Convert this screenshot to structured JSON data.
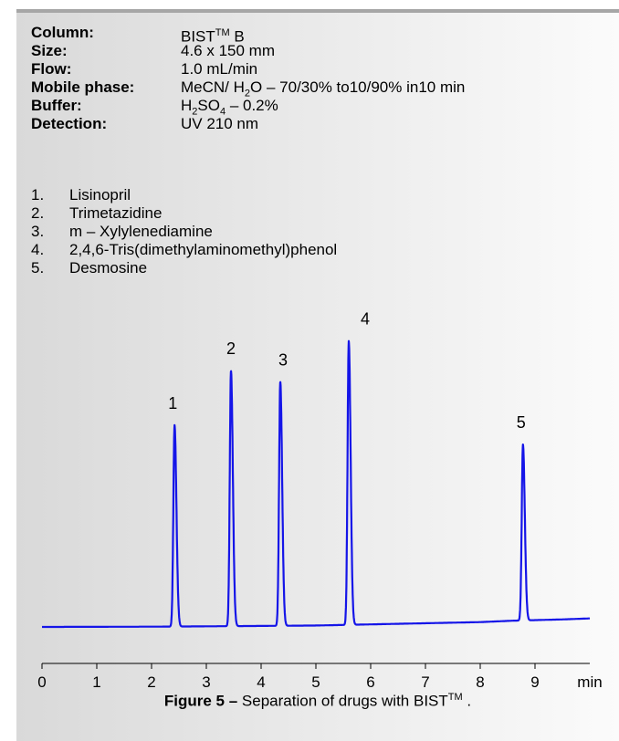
{
  "conditions": {
    "column": {
      "label": "Column:",
      "value": "BIST",
      "sup": "TM",
      "suffix": " B"
    },
    "size": {
      "label": "Size:",
      "value": "4.6 x 150 mm"
    },
    "flow": {
      "label": "Flow:",
      "value": "1.0 mL/min"
    },
    "mobile_phase": {
      "label": "Mobile phase:",
      "value_pre": "MeCN/ H",
      "sub": "2",
      "value_post": "O – 70/30% to10/90% in10 min"
    },
    "buffer": {
      "label": "Buffer:",
      "value_pre": "H",
      "sub1": "2",
      "mid": "SO",
      "sub2": "4",
      "value_post": " – 0.2%"
    },
    "detection": {
      "label": "Detection:",
      "value": "UV 210 nm"
    }
  },
  "compounds": [
    {
      "num": "1.",
      "name": "Lisinopril"
    },
    {
      "num": "2.",
      "name": "Trimetazidine"
    },
    {
      "num": "3.",
      "name": "m – Xylylenediamine"
    },
    {
      "num": "4.",
      "name": "2,4,6-Tris(dimethylaminomethyl)phenol"
    },
    {
      "num": "5.",
      "name": "Desmosine"
    }
  ],
  "caption": {
    "bold": "Figure 5 –",
    "text": " Separation of drugs with BIST",
    "sup": "TM",
    "end": " ."
  },
  "chart_data": {
    "type": "line",
    "xlabel": "min",
    "xlim": [
      0,
      10
    ],
    "x_ticks": [
      "0",
      "1",
      "2",
      "3",
      "4",
      "5",
      "6",
      "7",
      "8",
      "9"
    ],
    "line_color": "#1515e8",
    "baseline": [
      [
        0,
        0.0
      ],
      [
        1.5,
        0.006
      ],
      [
        2.3,
        0.012
      ],
      [
        4.0,
        0.035
      ],
      [
        5.0,
        0.05
      ],
      [
        6.0,
        0.09
      ],
      [
        7.0,
        0.13
      ],
      [
        8.0,
        0.17
      ],
      [
        8.6,
        0.22
      ],
      [
        9.5,
        0.265
      ],
      [
        10.0,
        0.3
      ]
    ],
    "peaks": [
      {
        "label": "1",
        "rt": 2.42,
        "height": 7.1
      },
      {
        "label": "2",
        "rt": 3.45,
        "height": 9.0
      },
      {
        "label": "3",
        "rt": 4.35,
        "height": 8.6
      },
      {
        "label": "4",
        "rt": 5.6,
        "height": 10.0
      },
      {
        "label": "5",
        "rt": 8.78,
        "height": 6.2
      }
    ]
  }
}
